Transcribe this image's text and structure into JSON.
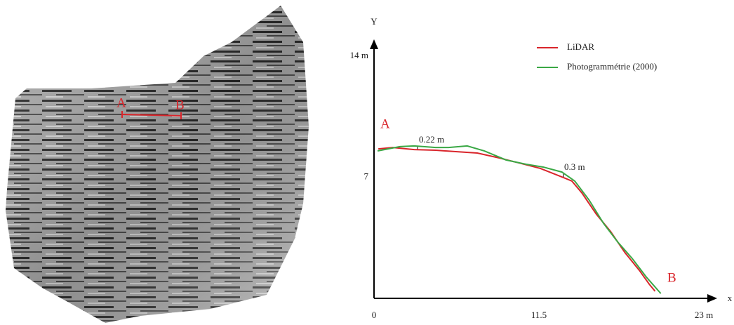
{
  "chart_data": {
    "type": "line",
    "xlabel": "x",
    "ylabel": "Y",
    "xlim": [
      0,
      23
    ],
    "ylim": [
      0,
      14
    ],
    "xticks": [
      0,
      11.5,
      {
        "value": 23,
        "label": "23 m"
      }
    ],
    "yticks": [
      7,
      {
        "value": 14,
        "label": "14 m"
      }
    ],
    "grid": false,
    "legend": "upper right",
    "series": [
      {
        "name": "LiDAR",
        "color": "#d9252b",
        "x": [
          0.3,
          1.3,
          2.8,
          4.3,
          5.7,
          7.2,
          8.7,
          10.1,
          11.6,
          13.1,
          13.8,
          14.5,
          15.5,
          16.5,
          17.5,
          18.5,
          19.2,
          19.6
        ],
        "values": [
          8.64,
          8.72,
          8.6,
          8.56,
          8.48,
          8.4,
          8.12,
          7.83,
          7.51,
          7.02,
          6.78,
          6.09,
          4.87,
          3.86,
          2.64,
          1.62,
          0.81,
          0.41
        ]
      },
      {
        "name": "Photogrammétrie (2000)",
        "color": "#3aa845",
        "x": [
          0.25,
          1.8,
          2.8,
          4.3,
          5.2,
          6.5,
          7.7,
          9.2,
          10.6,
          11.8,
          13.1,
          14.0,
          15.0,
          16.0,
          17.0,
          18.0,
          19.0,
          20.0
        ],
        "values": [
          8.52,
          8.77,
          8.81,
          8.72,
          8.72,
          8.81,
          8.52,
          8.0,
          7.75,
          7.59,
          7.3,
          6.78,
          5.68,
          4.34,
          3.25,
          2.31,
          1.22,
          0.28
        ]
      }
    ],
    "annotations": [
      "A",
      "B",
      "0.22 m",
      "0.3 m"
    ]
  },
  "image": {
    "labels": [
      "A",
      "B"
    ]
  }
}
